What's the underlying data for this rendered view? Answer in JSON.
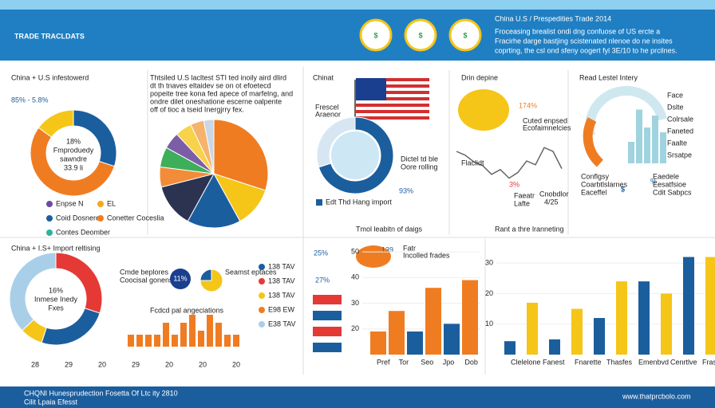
{
  "header": {
    "title": "TRADE TRACLDATS",
    "icons": [
      "$",
      "$",
      "$"
    ],
    "subtitle": "China U.S / Prespedities Trade 2014",
    "lines": [
      "Froceasing brealist ondi dng confuose of US ercte a",
      "Fracirhe darge bastjing scistenated nlenoe do ne insites",
      "coprting, the csl ond sfeny oogert fyl 3E/10 to he prcilnes."
    ]
  },
  "p1": {
    "title": "China + U.S infestowerd",
    "stat": "85% - 5.8%",
    "donut": {
      "values": [
        30,
        55,
        15
      ],
      "colors": [
        "#1b5e9e",
        "#f07c22",
        "#f5c518"
      ]
    },
    "center": [
      "18%",
      "Fmproduedy",
      "sawndre",
      "33.9 li"
    ],
    "legend": [
      {
        "label": "Enpse N",
        "color": "#6a4c9c"
      },
      {
        "label": "EL",
        "color": "#f5a623"
      },
      {
        "label": "Coid Dosnere",
        "color": "#1b5e9e"
      },
      {
        "label": "Conetter Coceslia",
        "color": "#f07c22"
      },
      {
        "label": "Contes Deomber",
        "color": "#2bb3a0"
      }
    ]
  },
  "p2": {
    "text": [
      "Thtsiled U.S lacltest STI ted inoily aird dlird",
      "dt th tnaves eltaidev se on ot efoetecd",
      "popeite tree kona fed apece of marfelng, and",
      "ondre dilet oneshatione escerne oalpente",
      "off of tioc a tseid Inergjrry fex."
    ],
    "pie": {
      "values": [
        30,
        12,
        16,
        13,
        6,
        6,
        5,
        5,
        4,
        3
      ],
      "colors": [
        "#f07c22",
        "#f5c518",
        "#1b5e9e",
        "#2b3350",
        "#f28c38",
        "#3fae5a",
        "#7b5ea7",
        "#f7d24a",
        "#f5b36b",
        "#c9d7e6"
      ]
    }
  },
  "p3": {
    "title": "Chinat",
    "note": [
      "Frescel",
      "Araenor"
    ],
    "donut": {
      "values": [
        70,
        30
      ],
      "colors": [
        "#1b5e9e",
        "#d6e6f2"
      ]
    },
    "side": [
      "Dictel td ble",
      "Oore rolling"
    ],
    "stat": "93%",
    "caption": "Edt Thd Hang import"
  },
  "p4": {
    "title": "Drin depine",
    "stat": "174%",
    "note": [
      "Cuted enpsed",
      "Ecofaimnelcies"
    ],
    "line": {
      "values": [
        5,
        4.6,
        3.9,
        3.5,
        2.6,
        3.1,
        2.2,
        2.8,
        4,
        3.6,
        5.4,
        5,
        3.2
      ],
      "color": "#666"
    },
    "stat2": "3%",
    "labels": [
      "Flaclidt",
      "Faeatr",
      "Lafte",
      "Cnobdlor",
      "4/25"
    ]
  },
  "p5": {
    "title": "Read Lestel Intery",
    "bars": {
      "values": [
        18,
        45,
        30,
        40,
        26
      ],
      "color": "#9fd3df"
    },
    "labels": [
      "Face",
      "Dslte",
      "Colrsale",
      "Faneted",
      "Faalte",
      "Srsatpe"
    ],
    "dollar": "$",
    "pct": "%",
    "notes": [
      "Conflgsy",
      "Coarbtlslarnes",
      "Eaceffel",
      "Eaedele",
      "Eesatfsioe",
      "Cdit Sabpcs"
    ]
  },
  "p6": {
    "title": "China + I.S+ Import reltising",
    "donut": {
      "values": [
        30,
        25,
        8,
        37
      ],
      "colors": [
        "#e53935",
        "#1b5e9e",
        "#f5c518",
        "#a9cfe8"
      ]
    },
    "center": [
      "16%",
      "Inmese Inedy",
      "Fxes"
    ],
    "callout": [
      "Cmde beplores",
      "Coocisal gonenst"
    ],
    "small": {
      "stat": "11%",
      "label": "Seamst eptaces",
      "donut": {
        "values": [
          75,
          25
        ],
        "colors": [
          "#f5c518",
          "#1b5e9e"
        ]
      }
    },
    "bar_title": "Fcdcd pal angeciations",
    "bars": {
      "values": [
        3,
        3,
        3,
        3,
        6,
        3,
        6,
        8,
        4,
        8,
        6,
        3,
        3
      ],
      "color": "#f07c22"
    },
    "xlabels": [
      "28",
      "29",
      "20",
      "29",
      "20",
      "20",
      "20"
    ],
    "legend": [
      {
        "label": "138 TAV",
        "color": "#1b5e9e"
      },
      {
        "label": "138 TAV",
        "color": "#e53935"
      },
      {
        "label": "138 TAV",
        "color": "#f5c518"
      },
      {
        "label": "E98 EW",
        "color": "#f07c22"
      },
      {
        "label": "E38 TAV",
        "color": "#a9cfe8"
      }
    ]
  },
  "p7": {
    "title": "Tmol leabitn of daigs",
    "stat1": "25%",
    "stat2": "27%",
    "map": "139",
    "map_notes": [
      "Fatr",
      "Incolled frades"
    ],
    "bars": {
      "values": [
        19,
        27,
        19,
        36,
        22,
        39
      ],
      "colors": [
        "#f07c22",
        "#f07c22",
        "#1b5e9e",
        "#f07c22",
        "#1b5e9e",
        "#f07c22"
      ]
    },
    "ylim": [
      10,
      55
    ],
    "yticks": [
      50,
      40,
      30,
      20
    ],
    "xlabels": [
      "Pref",
      "Tor",
      "Seo",
      "Jpo",
      "Dob"
    ]
  },
  "p8": {
    "title": "Rant a thre lranneting",
    "bars": {
      "values": [
        4.4,
        17,
        5,
        15,
        12,
        24,
        24,
        20,
        32,
        32
      ],
      "colors": [
        "#1b5e9e",
        "#f5c518",
        "#1b5e9e",
        "#f5c518",
        "#1b5e9e",
        "#f5c518",
        "#1b5e9e",
        "#f5c518",
        "#1b5e9e",
        "#f5c518"
      ]
    },
    "ylim": [
      0,
      35
    ],
    "yticks": [
      10,
      20,
      30
    ],
    "xlabels": [
      "Clelelone",
      "Fanest",
      "Fnarette",
      "Thasfes",
      "Emenbvd",
      "Cenrtlve",
      "Fraste"
    ]
  },
  "footer": {
    "line1": "CHQNI Hunesprudection Fosetta Of Ltc ity 2810",
    "line2": "Cilit Lpaia Efesst",
    "url": "www.thatprcbolo.com"
  }
}
